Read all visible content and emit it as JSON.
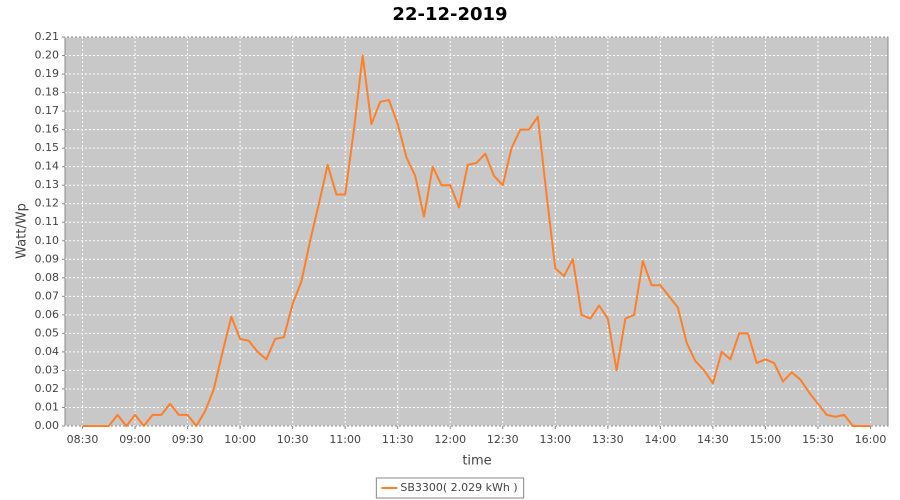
{
  "chart_data": {
    "type": "line",
    "title": "22-12-2019",
    "x_label": "time",
    "y_label": "Watt/Wp",
    "x": [
      "08:30",
      "08:35",
      "08:40",
      "08:45",
      "08:50",
      "08:55",
      "09:00",
      "09:05",
      "09:10",
      "09:15",
      "09:20",
      "09:25",
      "09:30",
      "09:35",
      "09:40",
      "09:45",
      "09:50",
      "09:55",
      "10:00",
      "10:05",
      "10:10",
      "10:15",
      "10:20",
      "10:25",
      "10:30",
      "10:35",
      "10:40",
      "10:45",
      "10:50",
      "10:55",
      "11:00",
      "11:05",
      "11:10",
      "11:15",
      "11:20",
      "11:25",
      "11:30",
      "11:35",
      "11:40",
      "11:45",
      "11:50",
      "11:55",
      "12:00",
      "12:05",
      "12:10",
      "12:15",
      "12:20",
      "12:25",
      "12:30",
      "12:35",
      "12:40",
      "12:45",
      "12:50",
      "12:55",
      "13:00",
      "13:05",
      "13:10",
      "13:15",
      "13:20",
      "13:25",
      "13:30",
      "13:35",
      "13:40",
      "13:45",
      "13:50",
      "13:55",
      "14:00",
      "14:05",
      "14:10",
      "14:15",
      "14:20",
      "14:25",
      "14:30",
      "14:35",
      "14:40",
      "14:45",
      "14:50",
      "14:55",
      "15:00",
      "15:05",
      "15:10",
      "15:15",
      "15:20",
      "15:25",
      "15:30",
      "15:35",
      "15:40",
      "15:45",
      "15:50",
      "15:55",
      "16:00"
    ],
    "series": [
      {
        "name": "SB3300( 2.029 kWh )",
        "color": "#ff7f2a",
        "values": [
          0,
          0,
          0,
          0,
          0.006,
          0,
          0.006,
          0,
          0.006,
          0.006,
          0.012,
          0.006,
          0.006,
          0,
          0.008,
          0.02,
          0.04,
          0.059,
          0.047,
          0.046,
          0.04,
          0.036,
          0.047,
          0.048,
          0.066,
          0.078,
          0.1,
          0.12,
          0.141,
          0.125,
          0.125,
          0.16,
          0.2,
          0.163,
          0.175,
          0.176,
          0.163,
          0.145,
          0.135,
          0.113,
          0.14,
          0.13,
          0.13,
          0.118,
          0.141,
          0.142,
          0.147,
          0.135,
          0.13,
          0.15,
          0.16,
          0.16,
          0.167,
          0.125,
          0.085,
          0.081,
          0.09,
          0.06,
          0.058,
          0.065,
          0.058,
          0.03,
          0.058,
          0.06,
          0.089,
          0.076,
          0.076,
          0.07,
          0.064,
          0.045,
          0.035,
          0.03,
          0.023,
          0.04,
          0.036,
          0.05,
          0.05,
          0.034,
          0.036,
          0.034,
          0.024,
          0.029,
          0.025,
          0.018,
          0.012,
          0.006,
          0.005,
          0.006,
          0,
          0,
          0
        ]
      }
    ],
    "xlim": [
      "08:20",
      "16:10"
    ],
    "xticks": [
      "08:30",
      "09:00",
      "09:30",
      "10:00",
      "10:30",
      "11:00",
      "11:30",
      "12:00",
      "12:30",
      "13:00",
      "13:30",
      "14:00",
      "14:30",
      "15:00",
      "15:30",
      "16:00"
    ],
    "ylim": [
      0,
      0.21
    ],
    "yticks": [
      {
        "value": 0,
        "label": "0.00"
      },
      0.01,
      0.02,
      0.03,
      0.04,
      0.05,
      0.06,
      0.07,
      0.08,
      0.09,
      {
        "value": 0.1,
        "label": "0.10"
      },
      0.11,
      0.12,
      0.13,
      0.14,
      0.15,
      0.16,
      0.17,
      0.18,
      0.19,
      {
        "value": 0.2,
        "label": "0.20"
      },
      0.21
    ],
    "grid": true,
    "legend": "bottom"
  }
}
